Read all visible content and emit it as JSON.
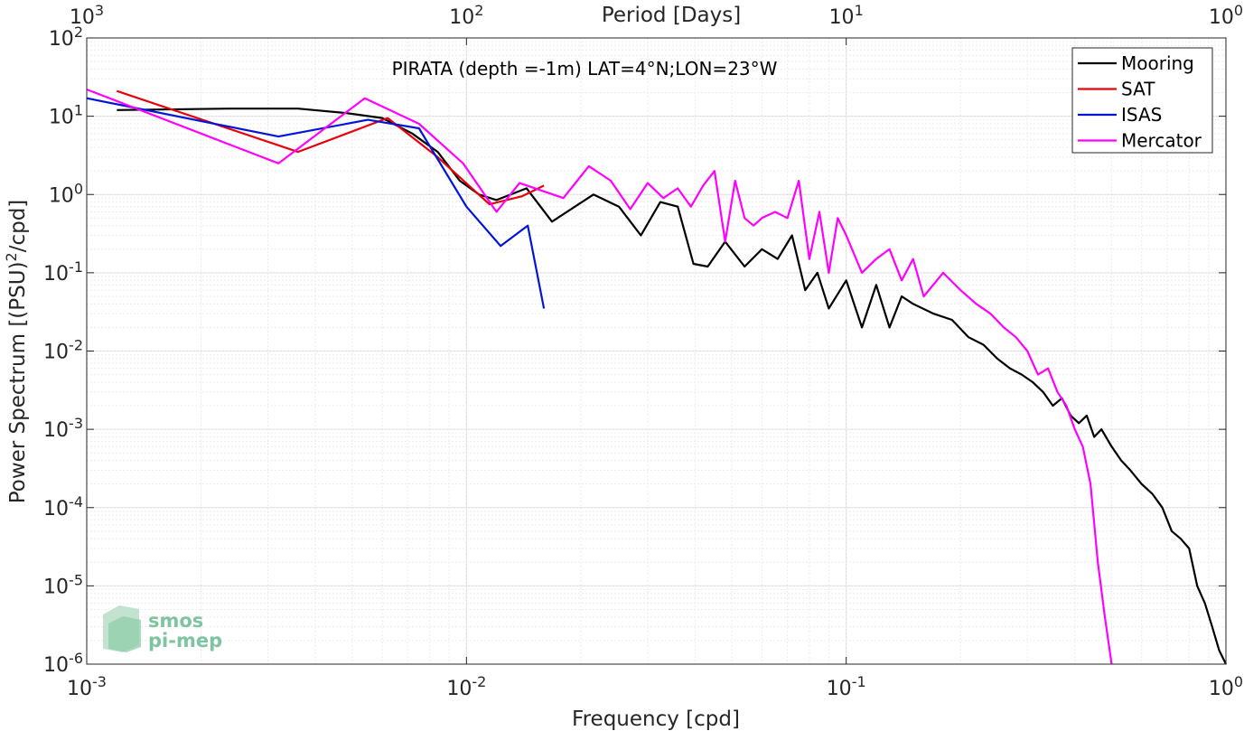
{
  "chart_data": {
    "type": "line",
    "title": "PIRATA (depth =-1m) LAT=4°N;LON=23°W",
    "xlabel": "Frequency [cpd]",
    "ylabel": "Power Spectrum [(PSU)^2/cpd]",
    "top_xlabel": "Period [Days]",
    "xscale": "log",
    "yscale": "log",
    "xlim": [
      0.001,
      1
    ],
    "ylim": [
      1e-06,
      100
    ],
    "grid": true,
    "legend_position": "top-right",
    "x_ticks": [
      {
        "base": "10",
        "exp": "-3"
      },
      {
        "base": "10",
        "exp": "-2"
      },
      {
        "base": "10",
        "exp": "-1"
      },
      {
        "base": "10",
        "exp": "0"
      }
    ],
    "y_ticks": [
      {
        "base": "10",
        "exp": "-6"
      },
      {
        "base": "10",
        "exp": "-5"
      },
      {
        "base": "10",
        "exp": "-4"
      },
      {
        "base": "10",
        "exp": "-3"
      },
      {
        "base": "10",
        "exp": "-2"
      },
      {
        "base": "10",
        "exp": "-1"
      },
      {
        "base": "10",
        "exp": "0"
      },
      {
        "base": "10",
        "exp": "1"
      },
      {
        "base": "10",
        "exp": "2"
      }
    ],
    "top_ticks": [
      {
        "base": "10",
        "exp": "3"
      },
      {
        "base": "10",
        "exp": "2"
      },
      {
        "base": "10",
        "exp": "1"
      },
      {
        "base": "10",
        "exp": "0"
      }
    ],
    "series": [
      {
        "name": "Mooring",
        "color": "#000000",
        "x": [
          0.0012,
          0.0024,
          0.0036,
          0.0048,
          0.006,
          0.0072,
          0.0084,
          0.0096,
          0.0108,
          0.012,
          0.0144,
          0.0168,
          0.0216,
          0.0252,
          0.0288,
          0.0324,
          0.036,
          0.0396,
          0.0432,
          0.048,
          0.054,
          0.06,
          0.066,
          0.072,
          0.078,
          0.084,
          0.09,
          0.1,
          0.11,
          0.12,
          0.13,
          0.14,
          0.15,
          0.17,
          0.19,
          0.21,
          0.23,
          0.25,
          0.27,
          0.29,
          0.31,
          0.33,
          0.35,
          0.37,
          0.39,
          0.41,
          0.43,
          0.45,
          0.47,
          0.5,
          0.53,
          0.56,
          0.6,
          0.64,
          0.68,
          0.72,
          0.76,
          0.8,
          0.84,
          0.88,
          0.92,
          0.96,
          1.0
        ],
        "y": [
          12,
          12.5,
          12.5,
          11,
          9.5,
          6,
          3.5,
          1.5,
          1.0,
          0.85,
          1.2,
          0.45,
          1.0,
          0.7,
          0.3,
          0.8,
          0.7,
          0.13,
          0.12,
          0.25,
          0.12,
          0.2,
          0.15,
          0.3,
          0.06,
          0.1,
          0.035,
          0.08,
          0.02,
          0.07,
          0.02,
          0.05,
          0.04,
          0.03,
          0.025,
          0.015,
          0.012,
          0.008,
          0.006,
          0.005,
          0.004,
          0.003,
          0.002,
          0.0025,
          0.0015,
          0.0012,
          0.0015,
          0.0008,
          0.001,
          0.0006,
          0.0004,
          0.0003,
          0.0002,
          0.00015,
          0.0001,
          5e-05,
          4e-05,
          3e-05,
          1e-05,
          6e-06,
          3e-06,
          1.5e-06,
          1e-06
        ]
      },
      {
        "name": "SAT",
        "color": "#e8000b",
        "x": [
          0.0012,
          0.0036,
          0.0062,
          0.0084,
          0.0115,
          0.014,
          0.016
        ],
        "y": [
          21,
          3.5,
          9.5,
          3.0,
          0.75,
          0.95,
          1.3
        ]
      },
      {
        "name": "ISAS",
        "color": "#0015d8",
        "x": [
          0.001,
          0.0032,
          0.0055,
          0.0075,
          0.01,
          0.0123,
          0.0145,
          0.016
        ],
        "y": [
          17,
          5.5,
          9,
          7,
          0.7,
          0.22,
          0.4,
          0.035
        ]
      },
      {
        "name": "Mercator",
        "color": "#ff00ff",
        "x": [
          0.001,
          0.0032,
          0.0054,
          0.0075,
          0.0098,
          0.012,
          0.0138,
          0.018,
          0.021,
          0.024,
          0.027,
          0.03,
          0.033,
          0.036,
          0.039,
          0.042,
          0.045,
          0.048,
          0.051,
          0.054,
          0.057,
          0.06,
          0.065,
          0.07,
          0.075,
          0.08,
          0.085,
          0.09,
          0.095,
          0.1,
          0.11,
          0.12,
          0.13,
          0.14,
          0.15,
          0.16,
          0.18,
          0.2,
          0.22,
          0.24,
          0.26,
          0.28,
          0.3,
          0.32,
          0.34,
          0.36,
          0.38,
          0.4,
          0.42,
          0.44,
          0.46,
          0.48,
          0.5
        ],
        "y": [
          22,
          2.5,
          17,
          8,
          2.5,
          0.6,
          1.4,
          0.9,
          2.3,
          1.5,
          0.65,
          1.4,
          0.9,
          1.2,
          0.7,
          1.3,
          2.0,
          0.25,
          1.5,
          0.5,
          0.4,
          0.5,
          0.6,
          0.5,
          1.5,
          0.15,
          0.6,
          0.1,
          0.5,
          0.3,
          0.1,
          0.15,
          0.2,
          0.08,
          0.15,
          0.05,
          0.1,
          0.06,
          0.04,
          0.03,
          0.02,
          0.015,
          0.01,
          0.005,
          0.006,
          0.003,
          0.002,
          0.001,
          0.0006,
          0.0002,
          2e-05,
          4e-06,
          1e-06
        ]
      }
    ]
  },
  "logo": {
    "line1": "smos",
    "line2": "pi-mep"
  }
}
